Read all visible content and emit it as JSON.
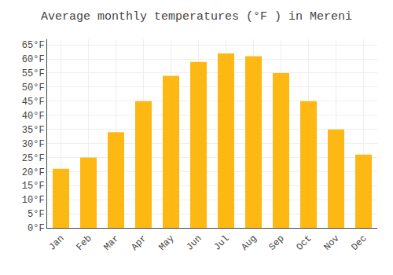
{
  "chart_data": {
    "type": "bar",
    "title": "Average monthly temperatures (°F ) in Mereni",
    "categories": [
      "Jan",
      "Feb",
      "Mar",
      "Apr",
      "May",
      "Jun",
      "Jul",
      "Aug",
      "Sep",
      "Oct",
      "Nov",
      "Dec"
    ],
    "values": [
      21,
      25,
      34,
      45,
      54,
      59,
      62,
      61,
      55,
      45,
      35,
      26
    ],
    "color": "#FDB813",
    "ylim": [
      0,
      67
    ],
    "yticks": [
      {
        "value": 0,
        "label": "0°F"
      },
      {
        "value": 5,
        "label": "5°F"
      },
      {
        "value": 10,
        "label": "10°F"
      },
      {
        "value": 15,
        "label": "15°F"
      },
      {
        "value": 20,
        "label": "20°F"
      },
      {
        "value": 25,
        "label": "25°F"
      },
      {
        "value": 30,
        "label": "30°F"
      },
      {
        "value": 35,
        "label": "35°F"
      },
      {
        "value": 40,
        "label": "40°F"
      },
      {
        "value": 45,
        "label": "45°F"
      },
      {
        "value": 50,
        "label": "50°F"
      },
      {
        "value": 55,
        "label": "55°F"
      },
      {
        "value": 60,
        "label": "60°F"
      },
      {
        "value": 65,
        "label": "65°F"
      }
    ],
    "grid": true
  }
}
